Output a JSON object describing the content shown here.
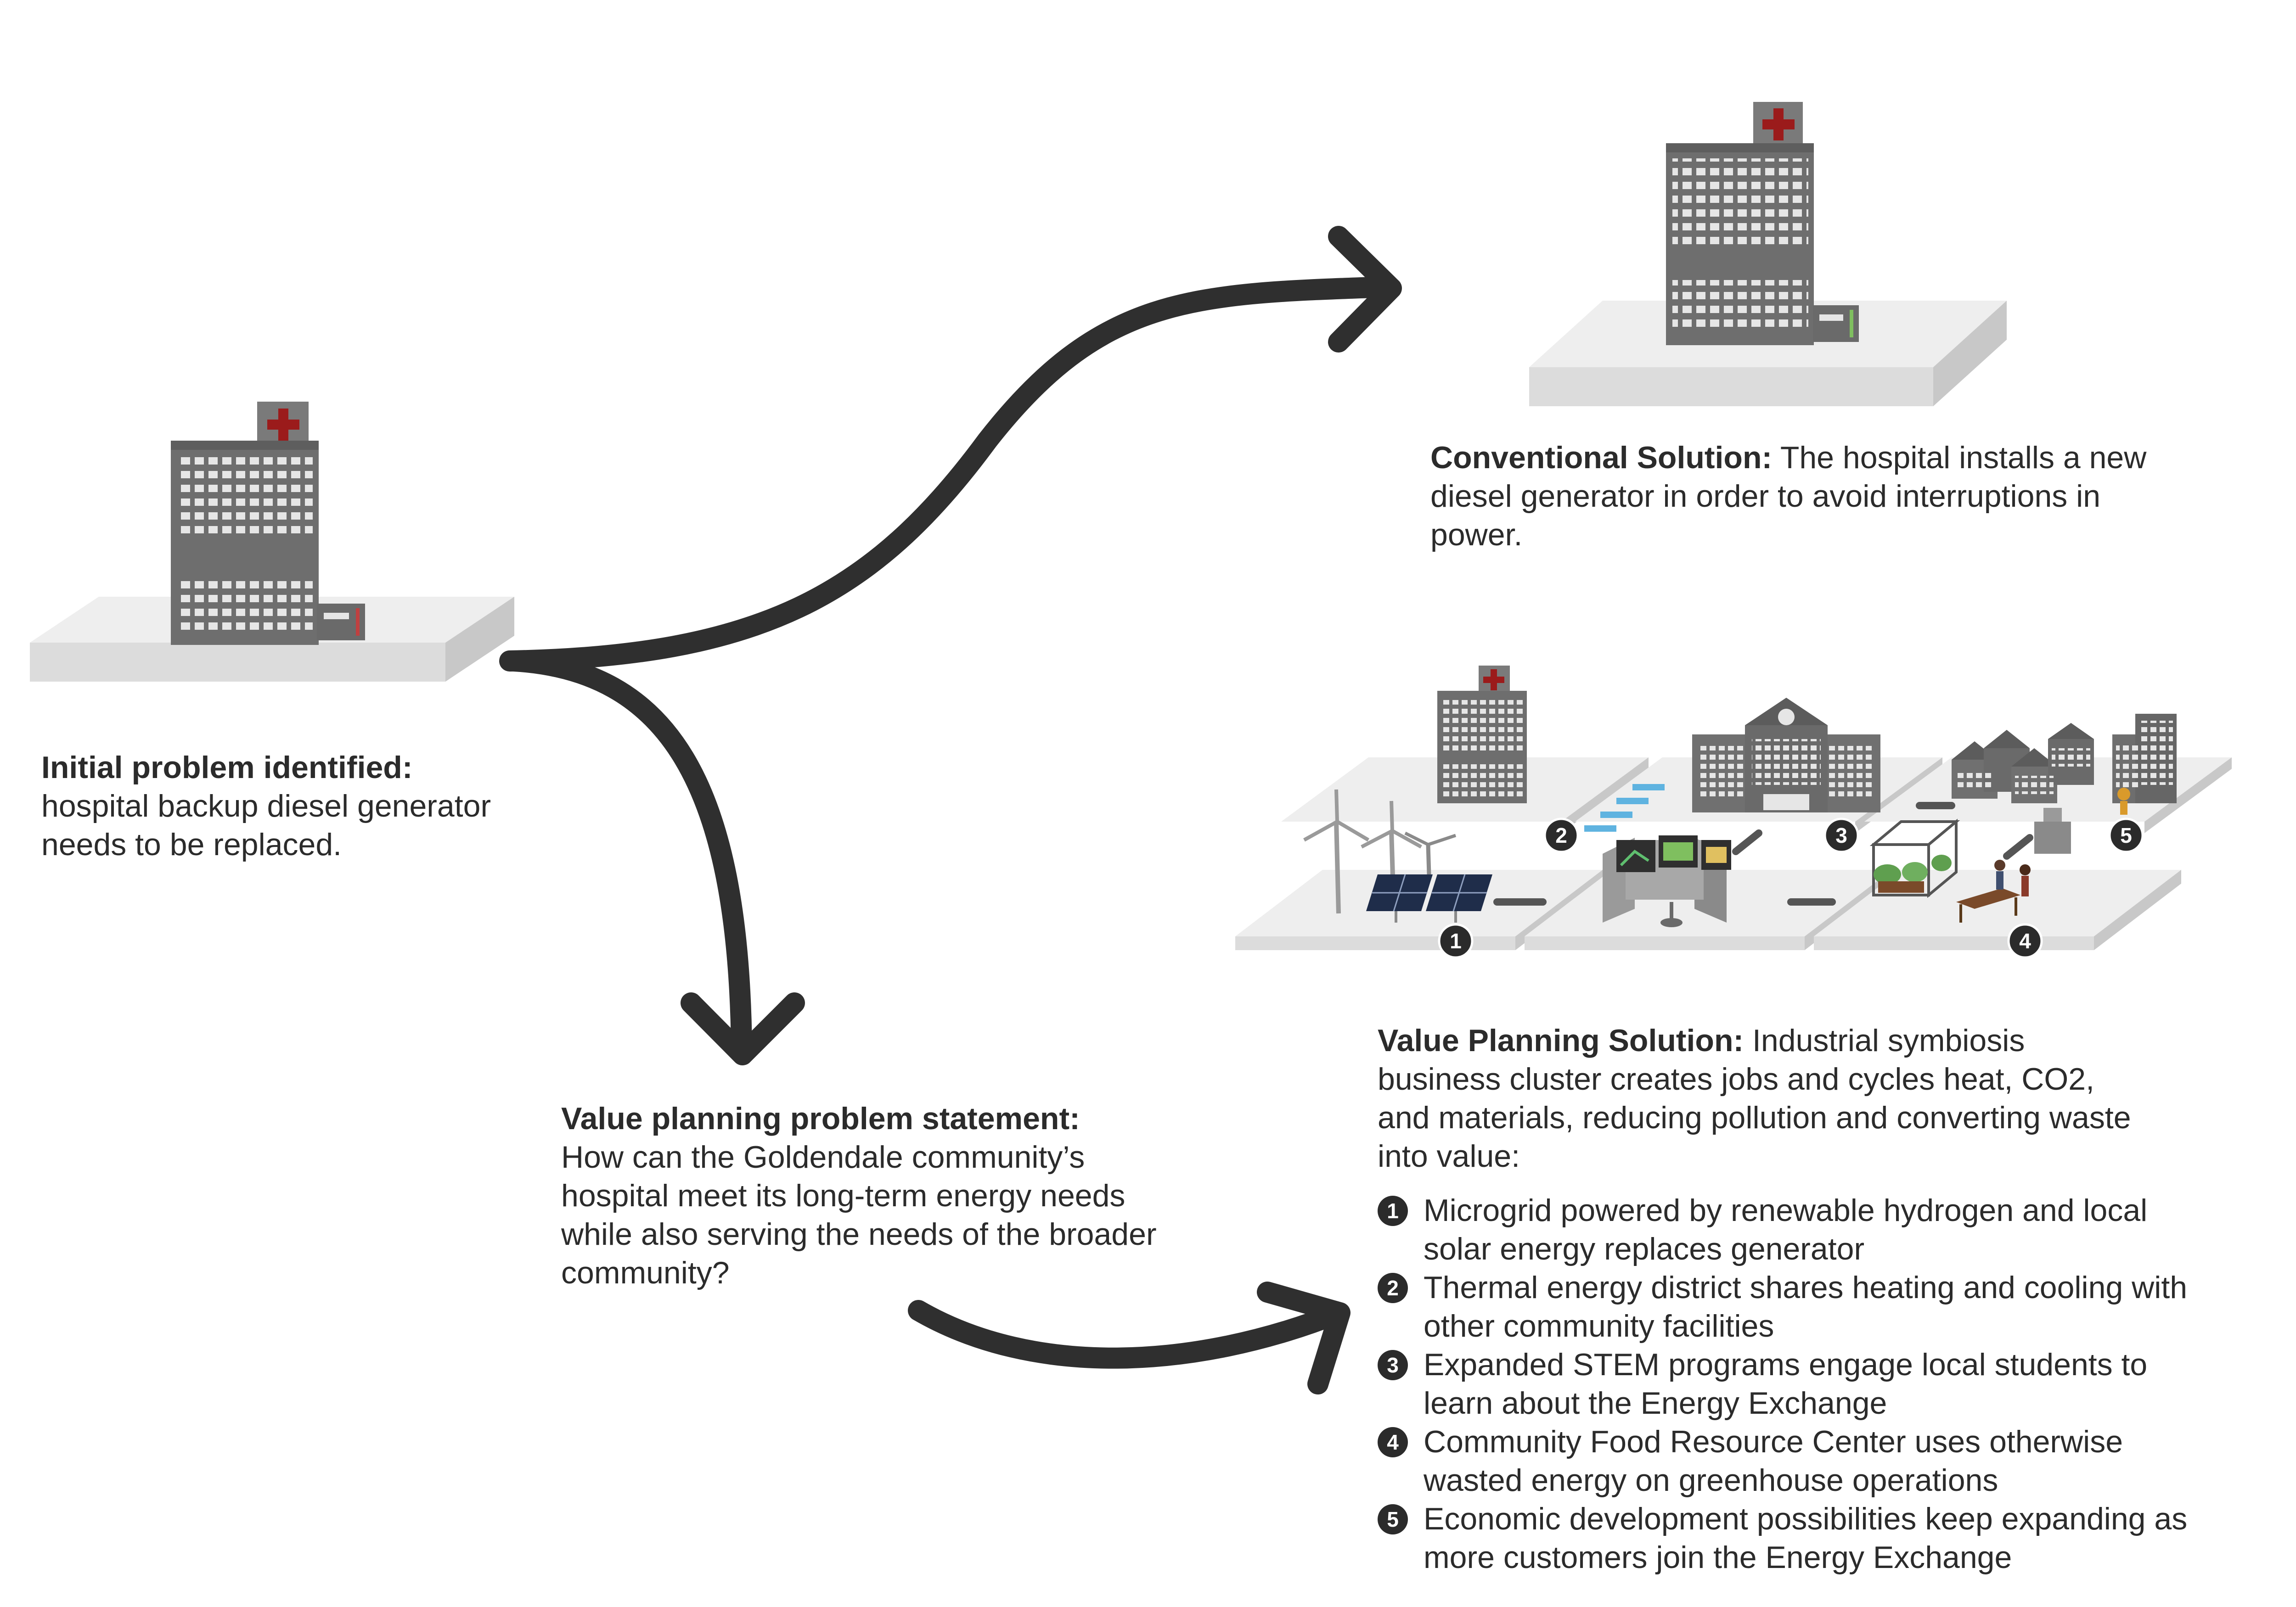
{
  "initial": {
    "heading": "Initial problem identified:",
    "lines": [
      "hospital backup diesel generator",
      "needs to be replaced."
    ]
  },
  "conventional": {
    "heading": "Conventional Solution:",
    "first": " The hospital installs a new",
    "lines": [
      "diesel generator in order to avoid interruptions in",
      "power."
    ]
  },
  "problem_statement": {
    "heading": "Value planning problem statement:",
    "lines": [
      "How can the Goldendale community’s",
      "hospital meet its long-term energy needs",
      "while also serving the needs of the broader",
      "community?"
    ]
  },
  "value_solution": {
    "heading": "Value Planning Solution:",
    "first": " Industrial symbiosis",
    "lines": [
      "business cluster creates jobs and cycles heat, CO2,",
      "and materials, reducing pollution and converting waste",
      "into value:"
    ],
    "items": [
      {
        "num": "1",
        "line1": "Microgrid powered by renewable hydrogen and local",
        "line2": "solar energy replaces generator"
      },
      {
        "num": "2",
        "line1": "Thermal energy district shares heating and cooling with",
        "line2": "other community facilities"
      },
      {
        "num": "3",
        "line1": "Expanded STEM programs engage local students to",
        "line2": "learn about the Energy Exchange"
      },
      {
        "num": "4",
        "line1": "Community Food Resource Center uses otherwise",
        "line2": "wasted energy on greenhouse operations"
      },
      {
        "num": "5",
        "line1": "Economic development possibilities keep expanding as",
        "line2": "more customers join the Energy Exchange"
      }
    ]
  },
  "map_badges": [
    "1",
    "2",
    "3",
    "4",
    "5"
  ],
  "colors": {
    "text": "#2b2b2b",
    "building": "#707070",
    "window": "#e6e6e6",
    "platform_top": "#eeeeee",
    "platform_front": "#dcdcdc",
    "platform_side": "#c8c8c8",
    "cross": "#9b1b1b",
    "arrow": "#2f2f2f",
    "solar": "#1f2d4a",
    "pipe_blue": "#5fb3e0"
  }
}
